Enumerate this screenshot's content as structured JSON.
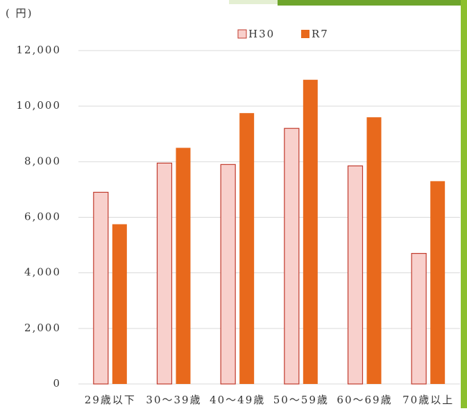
{
  "chart_data": {
    "type": "bar",
    "y_axis_label": "( 円)",
    "categories": [
      "29歳以下",
      "30～39歳",
      "40～49歳",
      "50～59歳",
      "60～69歳",
      "70歳以上"
    ],
    "series": [
      {
        "name": "H30",
        "color": "#f8d0cc",
        "values": [
          6900,
          7950,
          7900,
          9200,
          7850,
          4700
        ]
      },
      {
        "name": "R7",
        "color": "#e8691c",
        "values": [
          5750,
          8500,
          9750,
          10950,
          9600,
          7300
        ]
      }
    ],
    "ylim": [
      0,
      12000
    ],
    "yticks": [
      0,
      {
        "value": 2000,
        "label": "2,000"
      },
      {
        "value": 4000,
        "label": "4,000"
      },
      {
        "value": 6000,
        "label": "6,000"
      },
      {
        "value": 8000,
        "label": "8,000"
      },
      {
        "value": 10000,
        "label": "10,000"
      },
      {
        "value": 12000,
        "label": "12,000"
      }
    ],
    "grid": true
  }
}
